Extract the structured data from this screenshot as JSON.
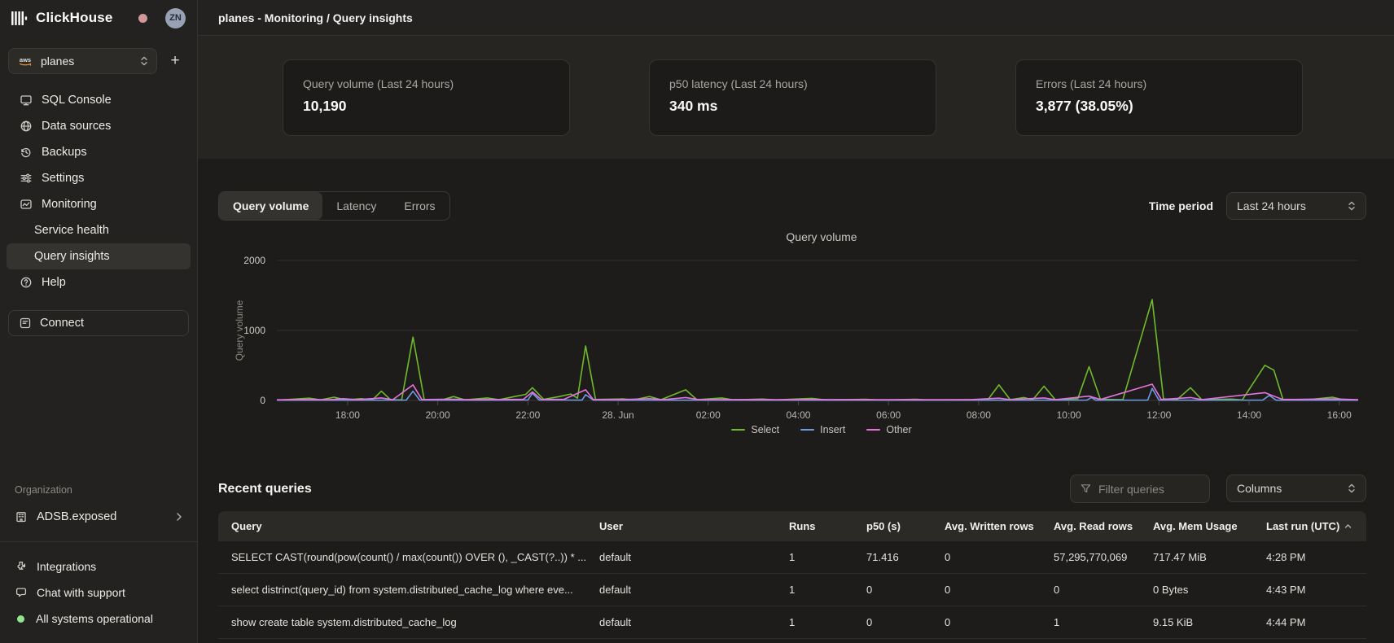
{
  "sidebar": {
    "logo_text": "ClickHouse",
    "avatar_initials": "ZN",
    "service_selector": {
      "label": "planes",
      "provider_icon": "aws-icon"
    },
    "add_service_label": "+",
    "nav": [
      {
        "label": "SQL Console",
        "icon": "sql-console"
      },
      {
        "label": "Data sources",
        "icon": "data-sources"
      },
      {
        "label": "Backups",
        "icon": "backups"
      },
      {
        "label": "Settings",
        "icon": "settings"
      },
      {
        "label": "Monitoring",
        "icon": "monitoring"
      },
      {
        "label": "Service health",
        "sub": true,
        "active": false
      },
      {
        "label": "Query insights",
        "sub": true,
        "active": true
      },
      {
        "label": "Help",
        "icon": "help"
      }
    ],
    "connect_label": "Connect",
    "organization": {
      "section_label": "Organization",
      "name": "ADSB.exposed"
    },
    "footer_items": [
      {
        "label": "Integrations",
        "icon": "integrations"
      },
      {
        "label": "Chat with support",
        "icon": "chat"
      },
      {
        "label": "All systems operational",
        "icon": "status-ok"
      }
    ]
  },
  "topbar": {
    "title": "planes - Monitoring / Query insights"
  },
  "stats": [
    {
      "label": "Query volume (Last 24 hours)",
      "value": "10,190"
    },
    {
      "label": "p50 latency (Last 24 hours)",
      "value": "340 ms"
    },
    {
      "label": "Errors (Last 24 hours)",
      "value": "3,877 (38.05%)"
    }
  ],
  "chart_tabs": {
    "tabs": [
      "Query volume",
      "Latency",
      "Errors"
    ],
    "active": "Query volume",
    "time_period_label": "Time period",
    "time_period_value": "Last 24 hours"
  },
  "chart_data": {
    "type": "line",
    "title": "Query volume",
    "ylabel": "Query volume",
    "ylim": [
      0,
      2000
    ],
    "yticks": [
      0,
      1000,
      2000
    ],
    "grid": true,
    "legend_position": "bottom",
    "x_domain": [
      16.43,
      40.42
    ],
    "xticks": [
      {
        "x": 18,
        "label": "18:00"
      },
      {
        "x": 20,
        "label": "20:00"
      },
      {
        "x": 22,
        "label": "22:00"
      },
      {
        "x": 24,
        "label": "28. Jun"
      },
      {
        "x": 26,
        "label": "02:00"
      },
      {
        "x": 28,
        "label": "04:00"
      },
      {
        "x": 30,
        "label": "06:00"
      },
      {
        "x": 32,
        "label": "08:00"
      },
      {
        "x": 34,
        "label": "10:00"
      },
      {
        "x": 36,
        "label": "12:00"
      },
      {
        "x": 38,
        "label": "14:00"
      },
      {
        "x": 40,
        "label": "16:00"
      }
    ],
    "series": [
      {
        "name": "Select",
        "color": "#6fba2c",
        "points": [
          [
            16.43,
            4
          ],
          [
            16.9,
            22
          ],
          [
            17.15,
            32
          ],
          [
            17.4,
            8
          ],
          [
            17.7,
            46
          ],
          [
            17.95,
            8
          ],
          [
            18.3,
            26
          ],
          [
            18.55,
            8
          ],
          [
            18.75,
            132
          ],
          [
            18.95,
            10
          ],
          [
            19.2,
            8
          ],
          [
            19.45,
            905
          ],
          [
            19.7,
            12
          ],
          [
            20.1,
            8
          ],
          [
            20.35,
            56
          ],
          [
            20.6,
            8
          ],
          [
            21.1,
            36
          ],
          [
            21.35,
            10
          ],
          [
            21.75,
            62
          ],
          [
            21.95,
            86
          ],
          [
            22.1,
            182
          ],
          [
            22.35,
            15
          ],
          [
            22.7,
            56
          ],
          [
            22.95,
            92
          ],
          [
            23.1,
            32
          ],
          [
            23.28,
            778
          ],
          [
            23.5,
            14
          ],
          [
            24.1,
            22
          ],
          [
            24.35,
            8
          ],
          [
            24.7,
            56
          ],
          [
            24.95,
            10
          ],
          [
            25.5,
            152
          ],
          [
            25.75,
            10
          ],
          [
            26.3,
            36
          ],
          [
            26.55,
            8
          ],
          [
            27.2,
            20
          ],
          [
            27.5,
            8
          ],
          [
            28.3,
            30
          ],
          [
            28.6,
            8
          ],
          [
            29.5,
            16
          ],
          [
            29.8,
            6
          ],
          [
            30.6,
            18
          ],
          [
            30.9,
            6
          ],
          [
            31.8,
            10
          ],
          [
            32.2,
            6
          ],
          [
            32.45,
            222
          ],
          [
            32.7,
            12
          ],
          [
            33.0,
            42
          ],
          [
            33.2,
            10
          ],
          [
            33.45,
            204
          ],
          [
            33.7,
            12
          ],
          [
            34.2,
            26
          ],
          [
            34.45,
            482
          ],
          [
            34.7,
            16
          ],
          [
            35.2,
            10
          ],
          [
            35.85,
            1442
          ],
          [
            36.1,
            22
          ],
          [
            36.4,
            12
          ],
          [
            36.7,
            182
          ],
          [
            36.95,
            12
          ],
          [
            37.6,
            20
          ],
          [
            37.85,
            8
          ],
          [
            38.35,
            502
          ],
          [
            38.55,
            432
          ],
          [
            38.75,
            16
          ],
          [
            39.3,
            10
          ],
          [
            39.85,
            46
          ],
          [
            40.1,
            8
          ],
          [
            40.42,
            6
          ]
        ]
      },
      {
        "name": "Insert",
        "color": "#6d9be3",
        "points": [
          [
            16.43,
            3
          ],
          [
            18.5,
            4
          ],
          [
            19.3,
            5
          ],
          [
            19.45,
            132
          ],
          [
            19.6,
            5
          ],
          [
            21.0,
            4
          ],
          [
            22.0,
            6
          ],
          [
            22.1,
            102
          ],
          [
            22.25,
            6
          ],
          [
            23.2,
            5
          ],
          [
            23.28,
            82
          ],
          [
            23.45,
            5
          ],
          [
            25.0,
            4
          ],
          [
            27.0,
            3
          ],
          [
            29.0,
            3
          ],
          [
            31.0,
            3
          ],
          [
            33.0,
            4
          ],
          [
            34.4,
            5
          ],
          [
            34.5,
            42
          ],
          [
            34.6,
            4
          ],
          [
            35.75,
            5
          ],
          [
            35.85,
            172
          ],
          [
            36.0,
            5
          ],
          [
            37.0,
            4
          ],
          [
            38.3,
            5
          ],
          [
            38.45,
            72
          ],
          [
            38.6,
            4
          ],
          [
            40.42,
            3
          ]
        ]
      },
      {
        "name": "Other",
        "color": "#e673dd",
        "points": [
          [
            16.43,
            9
          ],
          [
            17.1,
            13
          ],
          [
            17.6,
            10
          ],
          [
            17.9,
            26
          ],
          [
            18.2,
            10
          ],
          [
            18.75,
            36
          ],
          [
            19.0,
            11
          ],
          [
            19.45,
            222
          ],
          [
            19.65,
            13
          ],
          [
            20.3,
            19
          ],
          [
            20.7,
            10
          ],
          [
            21.9,
            16
          ],
          [
            22.1,
            122
          ],
          [
            22.3,
            13
          ],
          [
            22.8,
            16
          ],
          [
            23.28,
            152
          ],
          [
            23.45,
            13
          ],
          [
            24.1,
            13
          ],
          [
            24.7,
            26
          ],
          [
            25.0,
            11
          ],
          [
            25.5,
            42
          ],
          [
            25.8,
            11
          ],
          [
            26.5,
            13
          ],
          [
            27.5,
            10
          ],
          [
            28.3,
            13
          ],
          [
            29.5,
            10
          ],
          [
            30.6,
            11
          ],
          [
            31.8,
            10
          ],
          [
            32.45,
            32
          ],
          [
            32.7,
            12
          ],
          [
            33.45,
            36
          ],
          [
            33.7,
            12
          ],
          [
            34.45,
            62
          ],
          [
            34.7,
            14
          ],
          [
            35.85,
            232
          ],
          [
            36.05,
            14
          ],
          [
            36.7,
            42
          ],
          [
            36.95,
            12
          ],
          [
            38.35,
            112
          ],
          [
            38.55,
            62
          ],
          [
            38.75,
            13
          ],
          [
            39.85,
            22
          ],
          [
            40.42,
            10
          ]
        ]
      }
    ]
  },
  "recent_queries": {
    "title": "Recent queries",
    "filter_placeholder": "Filter queries",
    "columns_dropdown_label": "Columns",
    "columns": [
      "Query",
      "User",
      "Runs",
      "p50 (s)",
      "Avg. Written rows",
      "Avg. Read rows",
      "Avg. Mem Usage",
      "Last run (UTC)"
    ],
    "sort_column": "Last run (UTC)",
    "sort_direction": "asc",
    "rows": [
      [
        "SELECT CAST(round(pow(count() / max(count()) OVER (), _CAST(?..)) * ...",
        "default",
        "1",
        "71.416",
        "0",
        "57,295,770,069",
        "717.47 MiB",
        "4:28 PM"
      ],
      [
        "select distrinct(query_id) from system.distributed_cache_log where eve...",
        "default",
        "1",
        "0",
        "0",
        "0",
        "0 Bytes",
        "4:43 PM"
      ],
      [
        "show create table system.distributed_cache_log",
        "default",
        "1",
        "0",
        "0",
        "1",
        "9.15 KiB",
        "4:44 PM"
      ]
    ]
  },
  "colors": {
    "select_series": "#6fba2c",
    "insert_series": "#6d9be3",
    "other_series": "#e673dd",
    "status_ok": "#8fe48f",
    "notification_dot": "#d1979b"
  }
}
